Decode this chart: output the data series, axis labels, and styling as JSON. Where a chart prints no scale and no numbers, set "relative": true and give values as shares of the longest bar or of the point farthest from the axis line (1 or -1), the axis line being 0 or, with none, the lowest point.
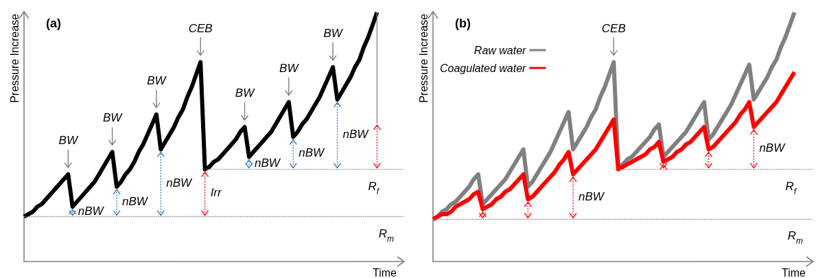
{
  "chart_data": [
    {
      "type": "line",
      "title": "(a)",
      "xlabel": "Time",
      "ylabel": "Pressure Increase",
      "relative": true,
      "grid": false,
      "line_style": "solid",
      "categories": [
        null,
        null,
        null,
        null,
        null,
        null,
        null,
        null,
        null,
        null,
        null,
        null,
        null,
        null,
        null,
        null,
        null,
        null,
        null,
        null,
        null,
        null,
        null,
        null,
        null,
        null,
        null,
        null,
        null,
        null,
        null,
        null,
        null,
        null,
        null,
        null,
        null,
        null,
        null,
        null,
        null,
        null,
        null,
        null,
        null,
        null,
        null,
        null,
        null,
        null,
        null,
        null,
        null,
        null,
        null,
        null,
        null,
        null,
        null,
        null,
        null,
        null,
        null,
        null,
        null,
        null,
        null,
        null,
        null,
        null,
        null,
        null,
        null,
        null,
        null,
        null,
        null,
        null,
        null,
        null,
        null,
        null,
        null,
        null,
        null,
        null,
        null
      ],
      "series": [
        {
          "color": "#000000",
          "values": [
            0.18,
            0.19,
            0.2,
            0.22,
            0.23,
            0.25,
            0.27,
            0.29,
            0.31,
            0.33,
            0.35,
            0.22,
            0.24,
            0.26,
            0.28,
            0.3,
            0.32,
            0.35,
            0.38,
            0.41,
            0.44,
            0.3,
            0.32,
            0.35,
            0.37,
            0.4,
            0.44,
            0.47,
            0.51,
            0.55,
            0.59,
            0.45,
            0.48,
            0.51,
            0.54,
            0.58,
            0.61,
            0.66,
            0.7,
            0.75,
            0.8,
            0.37,
            0.38,
            0.4,
            0.41,
            0.43,
            0.45,
            0.47,
            0.49,
            0.52,
            0.54,
            0.42,
            0.44,
            0.46,
            0.48,
            0.5,
            0.52,
            0.55,
            0.58,
            0.61,
            0.64,
            0.5,
            0.52,
            0.55,
            0.57,
            0.6,
            0.63,
            0.66,
            0.7,
            0.74,
            0.78,
            0.65,
            0.68,
            0.71,
            0.74,
            0.78,
            0.81,
            0.86,
            0.9,
            0.95,
            1,
            null,
            null,
            null,
            null,
            null,
            null
          ]
        },
        {
          "color": "#808080",
          "line_style": "dotted",
          "values": [
            null,
            null,
            null,
            null,
            null,
            null,
            null,
            null,
            null,
            null,
            null,
            null,
            null,
            null,
            null,
            null,
            null,
            null,
            null,
            null,
            null,
            null,
            null,
            null,
            null,
            null,
            null,
            null,
            null,
            null,
            null,
            null,
            null,
            null,
            null,
            null,
            null,
            null,
            null,
            null,
            0.37,
            0.37,
            0.37,
            0.37,
            0.37,
            0.37,
            0.37,
            0.37,
            0.37,
            0.37,
            0.37,
            0.37,
            0.37,
            0.37,
            0.37,
            0.37,
            0.37,
            0.37,
            0.37,
            0.37,
            0.37,
            0.37,
            0.37,
            0.37,
            0.37,
            0.37,
            0.37,
            0.37,
            0.37,
            0.37,
            0.37,
            0.37,
            0.37,
            0.37,
            0.37,
            0.37,
            0.37,
            0.37,
            0.37,
            0.37,
            0.37,
            0.37,
            0.37,
            0.37,
            0.37,
            0.37,
            0.37
          ]
        }
      ],
      "ref_lines": [
        {
          "axis": "y",
          "value": 0.18,
          "label": "R$_{m}$",
          "color": "#808080",
          "line_style": "dotted"
        }
      ],
      "annotations": [
        "BW",
        "BW",
        "BW",
        "CEB",
        "BW",
        "BW",
        "BW",
        "nBW",
        "nBW",
        "nBW",
        "Irr",
        "nBW",
        "nBW",
        "nBW",
        "R$_{f}$"
      ]
    },
    {
      "type": "line",
      "title": "(b)",
      "xlabel": "Time",
      "ylabel": "Pressure Increase",
      "relative": true,
      "grid": false,
      "line_style": "solid",
      "legend": "top left",
      "categories": [
        null,
        null,
        null,
        null,
        null,
        null,
        null,
        null,
        null,
        null,
        null,
        null,
        null,
        null,
        null,
        null,
        null,
        null,
        null,
        null,
        null,
        null,
        null,
        null,
        null,
        null,
        null,
        null,
        null,
        null,
        null,
        null,
        null,
        null,
        null,
        null,
        null,
        null,
        null,
        null,
        null,
        null,
        null,
        null,
        null,
        null,
        null,
        null,
        null,
        null,
        null,
        null,
        null,
        null,
        null,
        null,
        null,
        null,
        null,
        null,
        null,
        null,
        null,
        null,
        null,
        null,
        null,
        null,
        null,
        null,
        null,
        null,
        null,
        null,
        null,
        null,
        null,
        null,
        null,
        null,
        null,
        null,
        null,
        null,
        null
      ],
      "series": [
        {
          "name": "Raw water",
          "color": "#808080",
          "values": [
            0.17,
            0.18,
            0.2,
            0.21,
            0.23,
            0.24,
            0.26,
            0.28,
            0.3,
            0.33,
            0.35,
            0.23,
            0.25,
            0.27,
            0.29,
            0.31,
            0.33,
            0.36,
            0.39,
            0.42,
            0.45,
            0.3,
            0.32,
            0.35,
            0.38,
            0.41,
            0.44,
            0.48,
            0.52,
            0.56,
            0.6,
            0.45,
            0.48,
            0.51,
            0.54,
            0.58,
            0.61,
            0.66,
            0.7,
            0.75,
            0.8,
            0.38,
            0.39,
            0.41,
            0.42,
            0.44,
            0.46,
            0.48,
            0.5,
            0.53,
            0.55,
            0.42,
            0.44,
            0.46,
            0.48,
            0.5,
            0.52,
            0.55,
            0.58,
            0.61,
            0.64,
            0.49,
            0.51,
            0.54,
            0.57,
            0.6,
            0.63,
            0.67,
            0.71,
            0.75,
            0.79,
            0.65,
            0.68,
            0.71,
            0.74,
            0.78,
            0.81,
            0.86,
            0.9,
            0.95,
            1,
            null,
            null,
            null,
            null
          ]
        },
        {
          "name": "Coagulated water",
          "color": "#ff0000",
          "values": [
            0.17,
            0.18,
            0.19,
            0.19,
            0.2,
            0.22,
            0.23,
            0.24,
            0.25,
            0.27,
            0.28,
            0.21,
            0.22,
            0.23,
            0.25,
            0.26,
            0.28,
            0.29,
            0.31,
            0.33,
            0.35,
            0.25,
            0.26,
            0.28,
            0.3,
            0.32,
            0.34,
            0.36,
            0.39,
            0.41,
            0.44,
            0.35,
            0.37,
            0.39,
            0.41,
            0.43,
            0.45,
            0.48,
            0.51,
            0.54,
            0.57,
            0.37,
            0.38,
            0.39,
            0.4,
            0.41,
            0.42,
            0.43,
            0.45,
            0.46,
            0.48,
            0.4,
            0.41,
            0.42,
            0.44,
            0.45,
            0.47,
            0.48,
            0.5,
            0.52,
            0.54,
            0.45,
            0.46,
            0.48,
            0.5,
            0.52,
            0.54,
            0.56,
            0.59,
            0.61,
            0.64,
            0.54,
            0.56,
            0.58,
            0.6,
            0.62,
            0.64,
            0.67,
            0.7,
            0.73,
            0.76,
            null,
            null,
            null,
            null
          ]
        },
        {
          "color": "#808080",
          "line_style": "dotted",
          "values": [
            null,
            null,
            null,
            null,
            null,
            null,
            null,
            null,
            null,
            null,
            null,
            null,
            null,
            null,
            null,
            null,
            null,
            null,
            null,
            null,
            null,
            null,
            null,
            null,
            null,
            null,
            null,
            null,
            null,
            null,
            null,
            null,
            null,
            null,
            null,
            null,
            null,
            null,
            null,
            null,
            0.37,
            0.37,
            0.37,
            0.37,
            0.37,
            0.37,
            0.37,
            0.37,
            0.37,
            0.37,
            0.37,
            0.37,
            0.37,
            0.37,
            0.37,
            0.37,
            0.37,
            0.37,
            0.37,
            0.37,
            0.37,
            0.37,
            0.37,
            0.37,
            0.37,
            0.37,
            0.37,
            0.37,
            0.37,
            0.37,
            0.37,
            0.37,
            0.37,
            0.37,
            0.37,
            0.37,
            0.37,
            0.37,
            0.37,
            0.37,
            0.37,
            0.37,
            0.37,
            0.37,
            0.37
          ]
        }
      ],
      "ref_lines": [
        {
          "axis": "y",
          "value": 0.17,
          "label": "R$_{m}$",
          "color": "#808080",
          "line_style": "dotted"
        }
      ],
      "annotations": [
        "CEB",
        "nBW",
        "nBW",
        "R$_{f}$"
      ]
    }
  ]
}
